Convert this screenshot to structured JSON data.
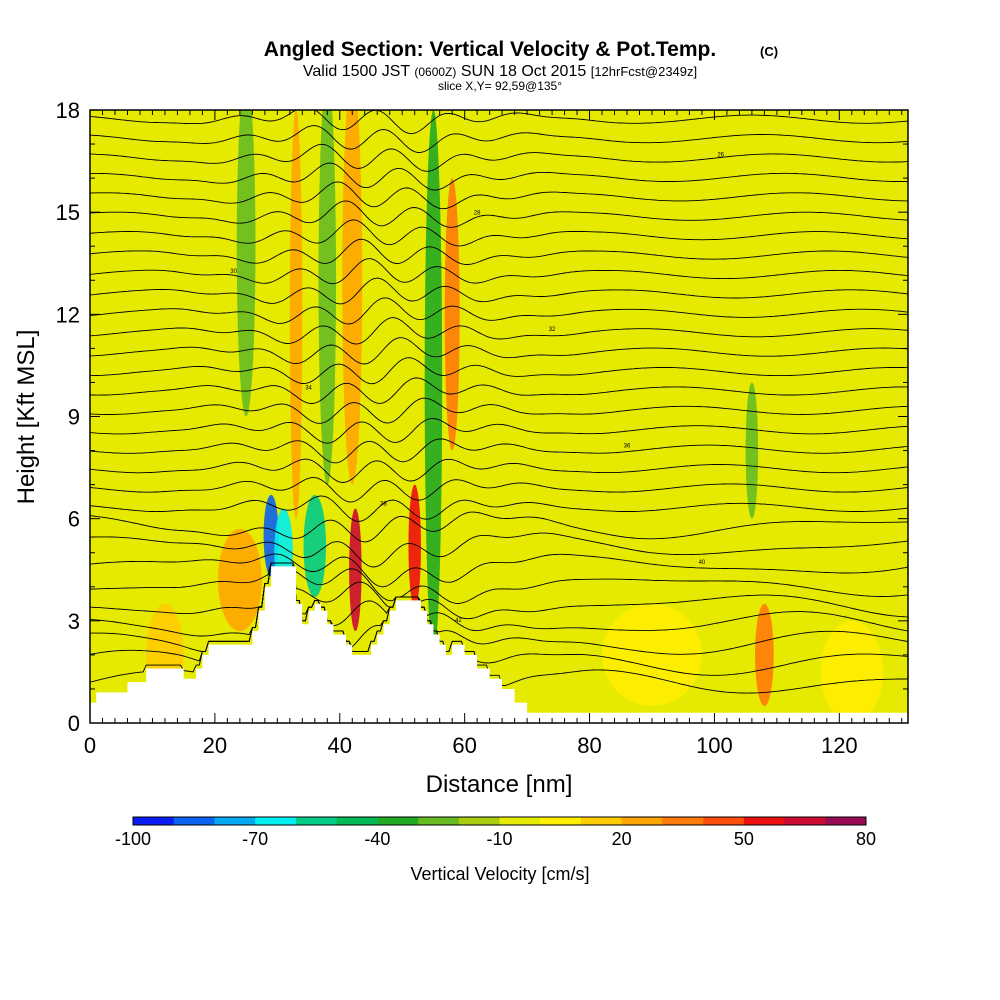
{
  "title": {
    "main": "Angled Section: Vertical Velocity & Pot.Temp.",
    "main_suffix": "(C)",
    "valid_prefix": "Valid 1500 JST",
    "valid_utc": "(0600Z)",
    "valid_date": "SUN 18 Oct 2015",
    "forecast": "[12hrFcst@2349z]",
    "slice": "slice X,Y= 92,59@135°"
  },
  "chart_data": {
    "type": "heatmap",
    "xlabel": "Distance [nm]",
    "ylabel": "Height [Kft MSL]",
    "xlim": [
      0,
      131
    ],
    "ylim": [
      0,
      18
    ],
    "xticks": [
      0,
      20,
      40,
      60,
      80,
      100,
      120
    ],
    "yticks": [
      0,
      3,
      6,
      9,
      12,
      15,
      18
    ],
    "background_value": -5,
    "terrain_profile": {
      "x": [
        0,
        1,
        5,
        6,
        9,
        13,
        15,
        17,
        18,
        19,
        20,
        22,
        24,
        26,
        27,
        28,
        29,
        31,
        33,
        34,
        35,
        36,
        37,
        38,
        39,
        41,
        42,
        44,
        45,
        46,
        47,
        48,
        49,
        51,
        53,
        54,
        55,
        56,
        57,
        58,
        60,
        62,
        64,
        66,
        68,
        70,
        72,
        131
      ],
      "y": [
        0.6,
        0.9,
        0.9,
        1.2,
        1.6,
        1.6,
        1.3,
        1.6,
        2.0,
        2.3,
        2.3,
        2.3,
        2.3,
        2.7,
        3.3,
        4.0,
        4.6,
        4.6,
        3.5,
        2.9,
        3.3,
        3.5,
        3.3,
        2.9,
        2.6,
        2.3,
        2.0,
        2.0,
        2.3,
        2.6,
        2.9,
        3.3,
        3.6,
        3.6,
        3.3,
        2.9,
        2.6,
        2.3,
        2.0,
        2.3,
        2.0,
        1.6,
        1.3,
        1.0,
        0.6,
        0.3,
        0.3,
        0.3
      ]
    },
    "velocity_features": [
      {
        "x": 29,
        "y": 5.5,
        "dx": 1.2,
        "dy": 1.2,
        "value": -85
      },
      {
        "x": 31,
        "y": 5.0,
        "dx": 1.5,
        "dy": 1.3,
        "value": -65
      },
      {
        "x": 36,
        "y": 5.2,
        "dx": 1.8,
        "dy": 1.5,
        "value": -55
      },
      {
        "x": 42.5,
        "y": 4.5,
        "dx": 1.0,
        "dy": 1.8,
        "value": 60
      },
      {
        "x": 52,
        "y": 5.2,
        "dx": 1.0,
        "dy": 1.8,
        "value": 55
      },
      {
        "x": 24,
        "y": 4.2,
        "dx": 3.5,
        "dy": 1.5,
        "value": 25
      },
      {
        "x": 12,
        "y": 2.0,
        "dx": 3.0,
        "dy": 1.5,
        "value": 10
      },
      {
        "x": 55,
        "y": 10.0,
        "dx": 1.4,
        "dy": 8.0,
        "value": -35
      },
      {
        "x": 42,
        "y": 13.0,
        "dx": 1.6,
        "dy": 6.0,
        "value": 25
      },
      {
        "x": 38,
        "y": 13.0,
        "dx": 1.4,
        "dy": 6.0,
        "value": -30
      },
      {
        "x": 33,
        "y": 12.0,
        "dx": 1.0,
        "dy": 6.0,
        "value": 20
      },
      {
        "x": 58,
        "y": 12.0,
        "dx": 1.2,
        "dy": 4.0,
        "value": 30
      },
      {
        "x": 25,
        "y": 14.0,
        "dx": 1.5,
        "dy": 5.0,
        "value": -25
      },
      {
        "x": 106,
        "y": 8.0,
        "dx": 1.0,
        "dy": 2.0,
        "value": -25
      },
      {
        "x": 108,
        "y": 2.0,
        "dx": 1.5,
        "dy": 1.5,
        "value": 35
      },
      {
        "x": 90,
        "y": 2.0,
        "dx": 8.0,
        "dy": 1.5,
        "value": 5
      },
      {
        "x": 122,
        "y": 1.5,
        "dx": 5.0,
        "dy": 1.5,
        "value": 5
      }
    ],
    "theta_contour_labels": [
      "44",
      "42",
      "40",
      "38",
      "36",
      "34",
      "32",
      "30",
      "28",
      "26"
    ]
  },
  "colorbar": {
    "title": "Vertical Velocity [cm/s]",
    "levels": [
      -100,
      -90,
      -80,
      -70,
      -60,
      -50,
      -40,
      -30,
      -20,
      -10,
      0,
      10,
      20,
      30,
      40,
      50,
      60,
      70,
      80
    ],
    "colors": [
      "#0a1cf5",
      "#0a62f0",
      "#02a8f2",
      "#00eef0",
      "#00cc88",
      "#00bb55",
      "#22aa22",
      "#66bb22",
      "#aacc11",
      "#e5ea00",
      "#ffee00",
      "#ffcc00",
      "#ffa500",
      "#ff7b0a",
      "#ff4f0a",
      "#ee1010",
      "#cc0a33",
      "#990a55",
      "#5a1090"
    ],
    "labels": [
      {
        "value": -100,
        "text": "-100"
      },
      {
        "value": -70,
        "text": "-70"
      },
      {
        "value": -40,
        "text": "-40"
      },
      {
        "value": -10,
        "text": "-10"
      },
      {
        "value": 20,
        "text": "20"
      },
      {
        "value": 50,
        "text": "50"
      },
      {
        "value": 80,
        "text": "80"
      }
    ]
  },
  "colors": {
    "frame": "#000000",
    "contour": "#000000",
    "terrain": "#ffffff"
  }
}
